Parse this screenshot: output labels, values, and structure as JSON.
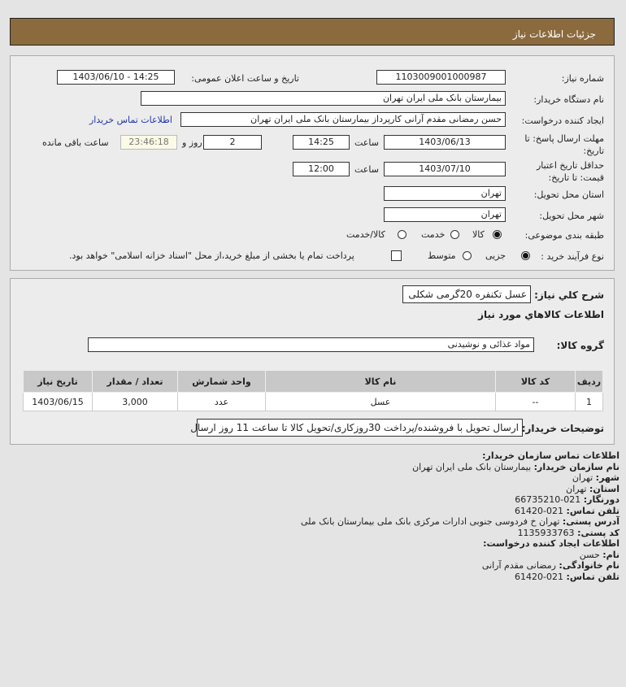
{
  "header": {
    "title": "جزئیات اطلاعات نیاز"
  },
  "form": {
    "need_number_label": "شماره نیاز:",
    "need_number": "1103009001000987",
    "announce_label": "تاریخ و ساعت اعلان عمومی:",
    "announce_value": "1403/06/10 - 14:25",
    "buyer_org_label": "نام دستگاه خریدار:",
    "buyer_org": "بیمارستان بانک ملی ایران تهران",
    "creator_label": "ایجاد کننده درخواست:",
    "creator": "حسن رمضانی مقدم آرانی کارپرداز بیمارستان بانک ملی ایران تهران",
    "buyer_contact_link": "اطلاعات تماس خریدار",
    "deadline_label": "مهلت ارسال پاسخ: تا تاریخ:",
    "deadline_date": "1403/06/13",
    "time_label": "ساعت",
    "deadline_time": "14:25",
    "days": "2",
    "days_label": "روز و",
    "remaining": "23:46:18",
    "remaining_label": "ساعت باقی مانده",
    "validity_label": "حداقل تاریخ اعتبار قیمت: تا تاریخ:",
    "validity_date": "1403/07/10",
    "validity_time": "12:00",
    "province_label": "استان محل تحویل:",
    "province": "تهران",
    "city_label": "شهر محل تحویل:",
    "city": "تهران",
    "category_label": "طبقه بندی موضوعی:",
    "category_options": [
      "کالا",
      "خدمت",
      "کالا/خدمت"
    ],
    "category_selected": "کالا",
    "process_label": "نوع فرآیند خرید :",
    "process_options": [
      "جزیی",
      "متوسط"
    ],
    "process_selected": "جزیی",
    "treasury_text": "پرداخت تمام یا بخشی از مبلغ خرید،از محل \"اسناد خزانه اسلامی\" خواهد بود.",
    "treasury_checked": false
  },
  "details": {
    "summary_label": "شرح كلي نياز:",
    "summary": "عسل تکنفره 20گرمی شکلی",
    "goods_heading": "اطلاعات كالاهاي مورد نياز",
    "group_label": "گروه کالا:",
    "group": "مواد غذائی و نوشیدنی",
    "table": {
      "headers": [
        "ردیف",
        "کد کالا",
        "نام کالا",
        "واحد شمارش",
        "تعداد / مقدار",
        "تاریخ نیاز"
      ],
      "rows": [
        [
          "1",
          "--",
          "عسل",
          "عدد",
          "3,000",
          "1403/06/15"
        ]
      ]
    },
    "notes_label": "توضیحات خریدار:",
    "notes": "ارسال تحویل با فروشنده/پرداخت 30روزکاری/تحویل کالا تا ساعت 11 روز ارسال"
  },
  "contact": {
    "title": "اطلاعات تماس سازمان خریدار:",
    "org_label": "نام سازمان خریدار:",
    "org": "بیمارستان بانک ملی ایران تهران",
    "city_label": "شهر:",
    "city": "تهران",
    "province_label": "استان:",
    "province": "تهران",
    "fax_label": "دورنگار:",
    "fax": "021-66735210",
    "phone_label": "تلفن تماس:",
    "phone": "021-61420",
    "address_label": "آدرس پستی:",
    "address": "تهران خ فردوسی جنوبی ادارات مرکزی بانک ملی بیمارستان بانک ملی",
    "postal_label": "کد پستی:",
    "postal": "1135933763",
    "creator_title": "اطلاعات ایجاد کننده درخواست:",
    "name_label": "نام:",
    "name": "حسن",
    "family_label": "نام خانوادگی:",
    "family": "رمضانی مقدم آرانی",
    "creator_phone_label": "تلفن تماس:",
    "creator_phone": "021-61420"
  }
}
